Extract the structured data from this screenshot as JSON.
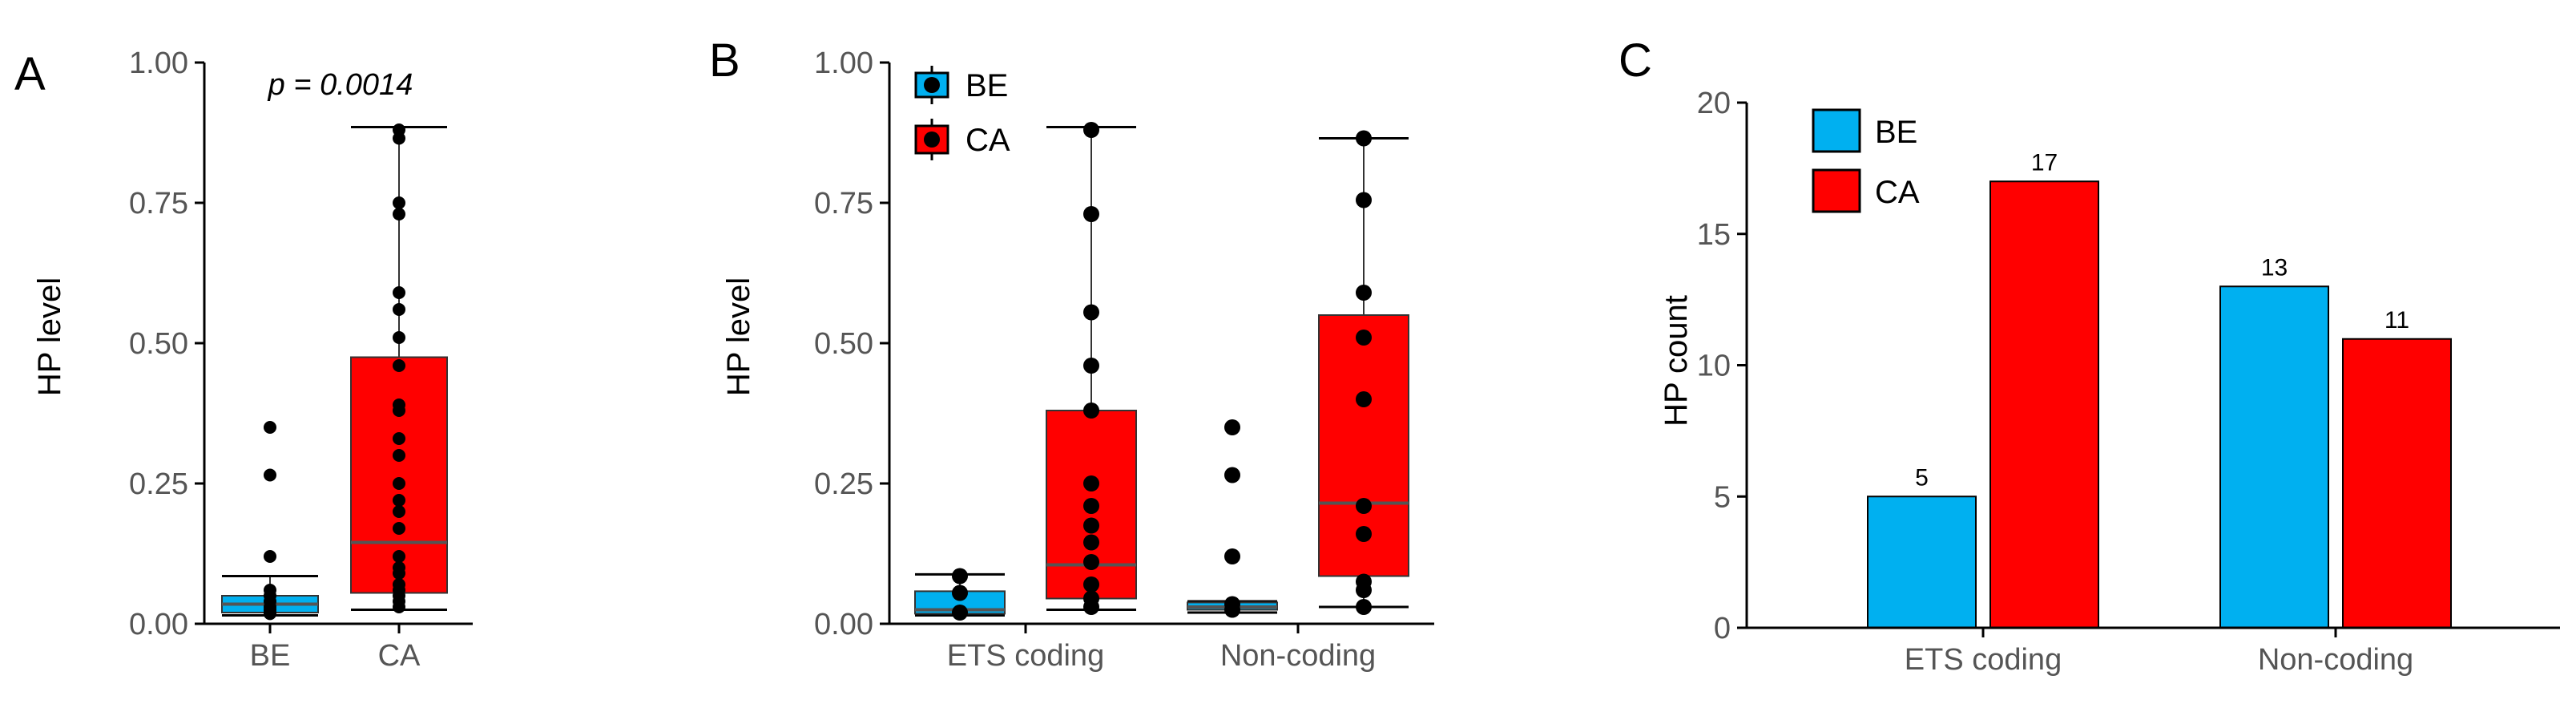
{
  "colors": {
    "BE": "#00B0F0",
    "CA": "#FF0000",
    "median": "#555555",
    "point": "#000000"
  },
  "chart_data": [
    {
      "panel": "A",
      "type": "box",
      "title": "",
      "xlabel": "",
      "ylabel": "HP level",
      "ylim": [
        0,
        1
      ],
      "yticks": [
        "0.00",
        "0.25",
        "0.50",
        "0.75",
        "1.00"
      ],
      "categories": [
        "BE",
        "CA"
      ],
      "annotation": "p = 0.0014",
      "groups": [
        {
          "name": "BE",
          "q1": 0.02,
          "median": 0.035,
          "q3": 0.05,
          "whisker_low": 0.015,
          "whisker_high": 0.085,
          "points": [
            0.35,
            0.265,
            0.12,
            0.06,
            0.05,
            0.04,
            0.03,
            0.025,
            0.02,
            0.018
          ]
        },
        {
          "name": "CA",
          "q1": 0.055,
          "median": 0.145,
          "q3": 0.475,
          "whisker_low": 0.025,
          "whisker_high": 0.885,
          "points": [
            0.88,
            0.865,
            0.75,
            0.73,
            0.59,
            0.56,
            0.51,
            0.46,
            0.39,
            0.38,
            0.33,
            0.3,
            0.25,
            0.22,
            0.2,
            0.17,
            0.12,
            0.1,
            0.09,
            0.07,
            0.06,
            0.05,
            0.04,
            0.03
          ]
        }
      ]
    },
    {
      "panel": "B",
      "type": "box",
      "title": "",
      "xlabel": "",
      "ylabel": "HP level",
      "ylim": [
        0,
        1
      ],
      "yticks": [
        "0.00",
        "0.25",
        "0.50",
        "0.75",
        "1.00"
      ],
      "categories": [
        "ETS coding",
        "Non-coding"
      ],
      "legend": [
        "BE",
        "CA"
      ],
      "legend_position": "top-left",
      "groups": [
        {
          "category": "ETS coding",
          "series": "BE",
          "q1": 0.018,
          "median": 0.025,
          "q3": 0.058,
          "whisker_low": 0.015,
          "whisker_high": 0.088,
          "points": [
            0.085,
            0.055,
            0.02
          ]
        },
        {
          "category": "ETS coding",
          "series": "CA",
          "q1": 0.045,
          "median": 0.105,
          "q3": 0.38,
          "whisker_low": 0.025,
          "whisker_high": 0.885,
          "points": [
            0.88,
            0.73,
            0.555,
            0.46,
            0.38,
            0.25,
            0.21,
            0.175,
            0.145,
            0.11,
            0.07,
            0.045,
            0.03
          ]
        },
        {
          "category": "Non-coding",
          "series": "BE",
          "q1": 0.025,
          "median": 0.03,
          "q3": 0.038,
          "whisker_low": 0.02,
          "whisker_high": 0.04,
          "points": [
            0.35,
            0.265,
            0.12,
            0.035,
            0.025
          ]
        },
        {
          "category": "Non-coding",
          "series": "CA",
          "q1": 0.085,
          "median": 0.215,
          "q3": 0.55,
          "whisker_low": 0.03,
          "whisker_high": 0.865,
          "points": [
            0.865,
            0.755,
            0.59,
            0.51,
            0.4,
            0.21,
            0.16,
            0.075,
            0.06,
            0.03
          ]
        }
      ]
    },
    {
      "panel": "C",
      "type": "bar",
      "title": "",
      "xlabel": "",
      "ylabel": "HP count",
      "ylim": [
        0,
        20
      ],
      "yticks": [
        "0",
        "5",
        "10",
        "15",
        "20"
      ],
      "categories": [
        "ETS coding",
        "Non-coding"
      ],
      "legend": [
        "BE",
        "CA"
      ],
      "legend_position": "top-left",
      "series": [
        {
          "name": "BE",
          "values": [
            5,
            13
          ],
          "labels": [
            "5",
            "13"
          ]
        },
        {
          "name": "CA",
          "values": [
            17,
            11
          ],
          "labels": [
            "17",
            "11"
          ]
        }
      ]
    }
  ]
}
